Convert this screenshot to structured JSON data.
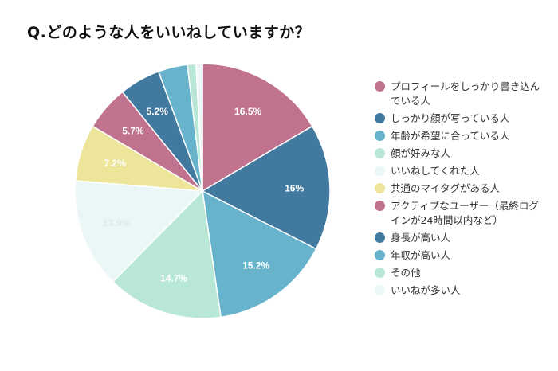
{
  "title": "Q.どのような人をいいねしていますか？",
  "chart_data": {
    "type": "pie",
    "title": "Q.どのような人をいいねしていますか？",
    "legend_position": "right",
    "slices": [
      {
        "label": "プロフィールをしっかり書き込んでいる人",
        "value": 16.5,
        "display": "16.5%",
        "color": "#c0728f"
      },
      {
        "label": "しっかり顔が写っている人",
        "value": 16,
        "display": "16%",
        "color": "#42799f"
      },
      {
        "label": "年齢が希望に合っている人",
        "value": 15.2,
        "display": "15.2%",
        "color": "#66b3cb"
      },
      {
        "label": "顔が好みな人",
        "value": 14.7,
        "display": "14.7%",
        "color": "#b8e8d5"
      },
      {
        "label": "いいねしてくれた人",
        "value": 13.9,
        "display": "13.9%",
        "color": "#ebf7f7"
      },
      {
        "label": "共通のマイタグがある人",
        "value": 7.2,
        "display": "7.2%",
        "color": "#ede59a"
      },
      {
        "label": "アクティブなユーザー（最終ログインが24時間以内など）",
        "value": 5.7,
        "display": "5.7%",
        "color": "#c0728f"
      },
      {
        "label": "身長が高い人",
        "value": 5.2,
        "display": "5.2%",
        "color": "#42799f"
      },
      {
        "label": "年収が高い人",
        "value": 3.7,
        "display": "",
        "color": "#66b3cb"
      },
      {
        "label": "その他",
        "value": 1.1,
        "display": "",
        "color": "#b8e8d5"
      },
      {
        "label": "いいねが多い人",
        "value": 0.8,
        "display": "",
        "color": "#ebf7f7"
      }
    ]
  }
}
